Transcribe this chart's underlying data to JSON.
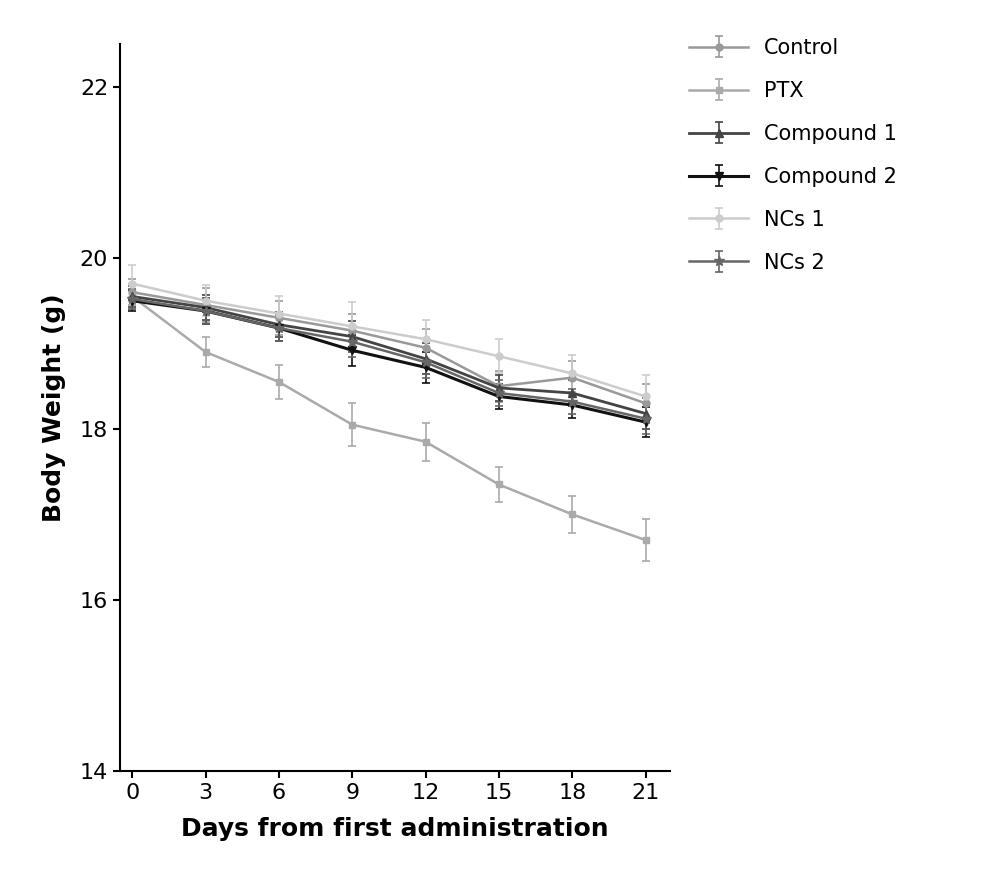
{
  "x": [
    0,
    3,
    6,
    9,
    12,
    15,
    18,
    21
  ],
  "series": {
    "Control": {
      "y": [
        19.6,
        19.45,
        19.3,
        19.15,
        18.95,
        18.5,
        18.6,
        18.3
      ],
      "yerr": [
        0.15,
        0.2,
        0.2,
        0.2,
        0.22,
        0.18,
        0.2,
        0.22
      ],
      "color": "#999999",
      "marker": "o",
      "linewidth": 1.8,
      "markersize": 5
    },
    "PTX": {
      "y": [
        19.55,
        18.9,
        18.55,
        18.05,
        17.85,
        17.35,
        17.0,
        16.7
      ],
      "yerr": [
        0.15,
        0.18,
        0.2,
        0.25,
        0.22,
        0.2,
        0.22,
        0.25
      ],
      "color": "#aaaaaa",
      "marker": "s",
      "linewidth": 1.8,
      "markersize": 5
    },
    "Compound 1": {
      "y": [
        19.55,
        19.42,
        19.22,
        19.08,
        18.82,
        18.48,
        18.42,
        18.18
      ],
      "yerr": [
        0.12,
        0.15,
        0.15,
        0.18,
        0.18,
        0.15,
        0.15,
        0.18
      ],
      "color": "#444444",
      "marker": "^",
      "linewidth": 2.0,
      "markersize": 6
    },
    "Compound 2": {
      "y": [
        19.5,
        19.38,
        19.18,
        18.92,
        18.72,
        18.38,
        18.28,
        18.08
      ],
      "yerr": [
        0.12,
        0.15,
        0.15,
        0.18,
        0.18,
        0.15,
        0.15,
        0.18
      ],
      "color": "#111111",
      "marker": "v",
      "linewidth": 2.2,
      "markersize": 6
    },
    "NCs 1": {
      "y": [
        19.7,
        19.5,
        19.35,
        19.2,
        19.05,
        18.85,
        18.65,
        18.38
      ],
      "yerr": [
        0.22,
        0.18,
        0.2,
        0.28,
        0.22,
        0.2,
        0.22,
        0.25
      ],
      "color": "#cccccc",
      "marker": "o",
      "linewidth": 1.8,
      "markersize": 5
    },
    "NCs 2": {
      "y": [
        19.52,
        19.38,
        19.18,
        19.02,
        18.78,
        18.42,
        18.32,
        18.12
      ],
      "yerr": [
        0.12,
        0.15,
        0.15,
        0.18,
        0.18,
        0.15,
        0.15,
        0.18
      ],
      "color": "#666666",
      "marker": "*",
      "linewidth": 1.8,
      "markersize": 7
    }
  },
  "xlabel": "Days from first administration",
  "ylabel": "Body Weight (g)",
  "xlim": [
    -0.5,
    22
  ],
  "ylim": [
    14,
    22.5
  ],
  "yticks": [
    14,
    16,
    18,
    20,
    22
  ],
  "xticks": [
    0,
    3,
    6,
    9,
    12,
    15,
    18,
    21
  ],
  "label_fontsize": 18,
  "tick_fontsize": 16,
  "legend_fontsize": 15
}
